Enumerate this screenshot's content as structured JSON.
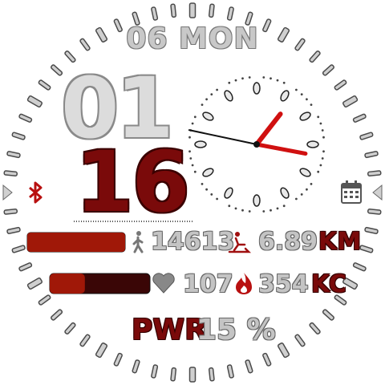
{
  "date_text": "06 MON",
  "time": {
    "hour": "01",
    "minute": "16"
  },
  "steps": {
    "value": "14613",
    "progress": 1.0,
    "icon": "walking-person-icon"
  },
  "distance": {
    "value": "6.89",
    "unit": "KM",
    "icon": "runner-distance-icon"
  },
  "heart_rate": {
    "value": "107",
    "progress": 0.35,
    "icon": "heart-icon"
  },
  "calories": {
    "value": "354",
    "unit": "KC",
    "icon": "flame-icon"
  },
  "battery": {
    "label": "PWR",
    "value": "15 %"
  },
  "analog_clock": {
    "hour": 1,
    "minute": 16,
    "second": 47
  },
  "icons": {
    "left": "bluetooth-icon",
    "right": "calendar-icon",
    "side_arrows": "triangle-arrow-icon"
  },
  "colors": {
    "accent": "#8b0a0a",
    "bar_fill": "#a01808",
    "bar_dark": "#3a0606",
    "digit_gray": "#d0d0d0",
    "hand_red": "#d01010"
  }
}
